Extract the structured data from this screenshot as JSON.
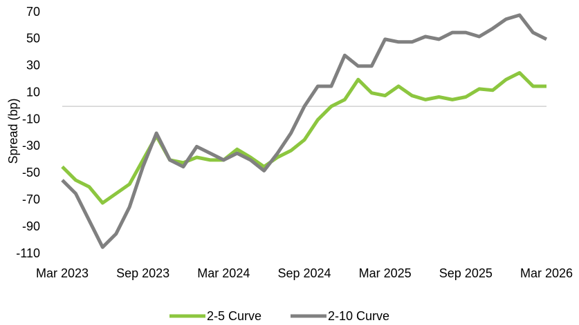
{
  "chart_data": {
    "type": "line",
    "ylabel": "Spread (bp)",
    "x": [
      "2023-03",
      "2023-04",
      "2023-05",
      "2023-06",
      "2023-07",
      "2023-08",
      "2023-09",
      "2023-10",
      "2023-11",
      "2023-12",
      "2024-01",
      "2024-02",
      "2024-03",
      "2024-04",
      "2024-05",
      "2024-06",
      "2024-07",
      "2024-08",
      "2024-09",
      "2024-10",
      "2024-11",
      "2024-12",
      "2025-01",
      "2025-02",
      "2025-03",
      "2025-04",
      "2025-05",
      "2025-06",
      "2025-07",
      "2025-08",
      "2025-09",
      "2025-10",
      "2025-11",
      "2025-12",
      "2026-01",
      "2026-02",
      "2026-03"
    ],
    "series": [
      {
        "name": "2-5 Curve",
        "color": "#8cc63f",
        "values": [
          -45,
          -55,
          -60,
          -72,
          -65,
          -58,
          -40,
          -22,
          -40,
          -42,
          -38,
          -40,
          -40,
          -32,
          -38,
          -45,
          -38,
          -33,
          -25,
          -10,
          0,
          5,
          20,
          10,
          8,
          15,
          8,
          5,
          7,
          5,
          7,
          13,
          12,
          20,
          25,
          15,
          15
        ]
      },
      {
        "name": "2-10 Curve",
        "color": "#808080",
        "values": [
          -55,
          -65,
          -85,
          -105,
          -95,
          -75,
          -45,
          -20,
          -40,
          -45,
          -30,
          -35,
          -40,
          -35,
          -40,
          -48,
          -35,
          -20,
          0,
          15,
          15,
          38,
          30,
          30,
          50,
          48,
          48,
          52,
          50,
          55,
          55,
          52,
          58,
          65,
          68,
          55,
          50
        ]
      }
    ],
    "xlim": [
      "2023-03",
      "2026-03"
    ],
    "xticks": [
      {
        "value": "2023-03",
        "label": "Mar 2023"
      },
      {
        "value": "2023-09",
        "label": "Sep 2023"
      },
      {
        "value": "2024-03",
        "label": "Mar 2024"
      },
      {
        "value": "2024-09",
        "label": "Sep 2024"
      },
      {
        "value": "2025-03",
        "label": "Mar 2025"
      },
      {
        "value": "2025-09",
        "label": "Sep 2025"
      },
      {
        "value": "2026-03",
        "label": "Mar 2026"
      }
    ],
    "ylim": [
      -110,
      70
    ],
    "yticks": [
      -110,
      -90,
      -70,
      -50,
      -30,
      -10,
      10,
      30,
      50,
      70
    ],
    "grid": false
  }
}
